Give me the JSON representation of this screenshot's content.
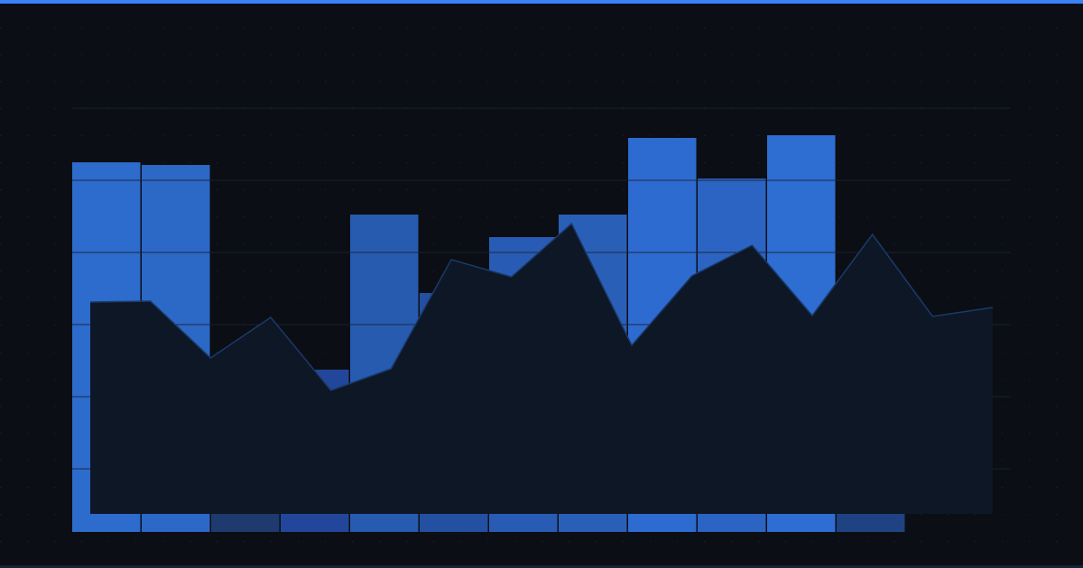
{
  "chart_data": {
    "type": "bar",
    "bars": {
      "values": [
        41,
        40.7,
        15,
        18,
        35.2,
        26.5,
        32.7,
        35.2,
        43.7,
        39.2,
        44,
        20
      ],
      "colors": [
        "#2d6bcc",
        "#2c68c6",
        "#1e3a6e",
        "#22479a",
        "#275bb0",
        "#2450a2",
        "#285cb4",
        "#2a5fb8",
        "#2e6bd0",
        "#2b64c2",
        "#2e6dd2",
        "#1f4282"
      ]
    },
    "area": {
      "type": "area",
      "values": [
        25.5,
        25.6,
        19.3,
        23.8,
        15.7,
        18.1,
        30.2,
        28.3,
        34.2,
        20.7,
        28.4,
        31.8,
        24,
        33,
        23.9,
        24.9
      ],
      "color": "#0e1726",
      "line_color": "#1a3a6a"
    },
    "ylim": [
      0,
      47
    ],
    "yticks": [
      7,
      15,
      23,
      31,
      39,
      47
    ],
    "grid": true
  }
}
